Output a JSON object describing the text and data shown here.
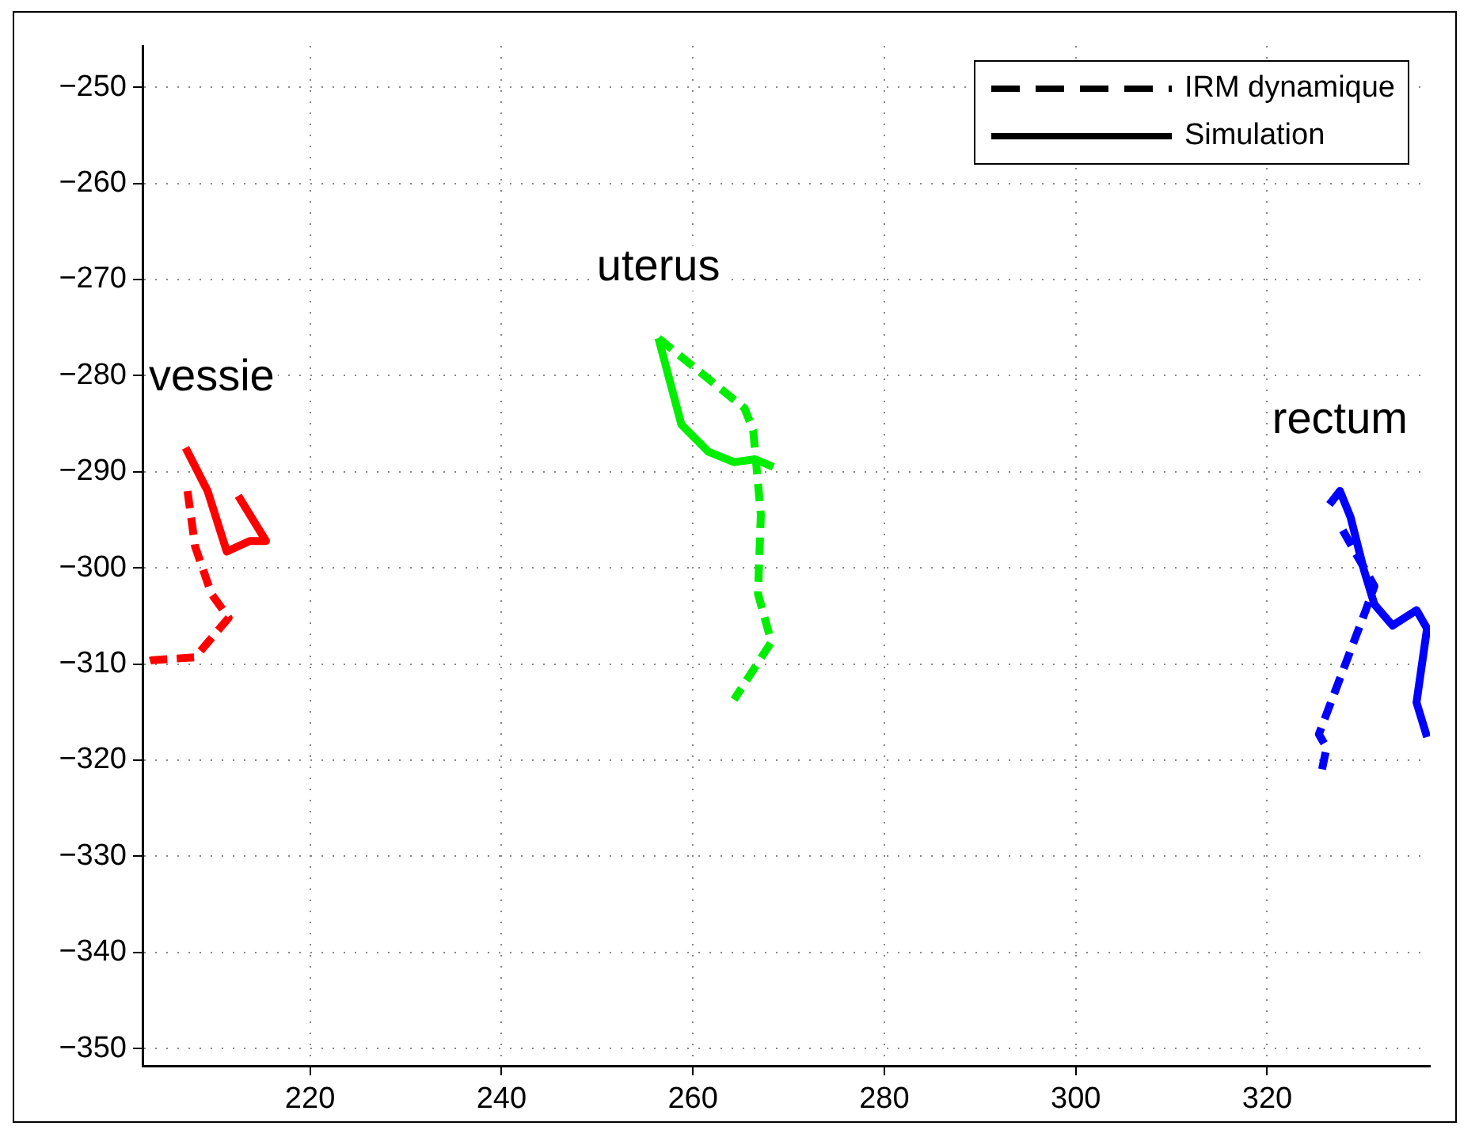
{
  "chart_data": {
    "type": "line",
    "xlim": [
      202.5,
      337
    ],
    "xticks": [
      220,
      240,
      260,
      280,
      300,
      320
    ],
    "ylim": [
      -351.8,
      -245.7
    ],
    "yticks": [
      {
        "value": -350,
        "label": "−350"
      },
      {
        "value": -340,
        "label": "−340"
      },
      {
        "value": -330,
        "label": "−330"
      },
      {
        "value": -320,
        "label": "−320"
      },
      {
        "value": -310,
        "label": "−310"
      },
      {
        "value": -300,
        "label": "−300"
      },
      {
        "value": -290,
        "label": "−290"
      },
      {
        "value": -280,
        "label": "−280"
      },
      {
        "value": -270,
        "label": "−270"
      },
      {
        "value": -260,
        "label": "−260"
      },
      {
        "value": -250,
        "label": "−250"
      }
    ],
    "grid": true,
    "legend": "top right",
    "marker": "none",
    "series": [
      {
        "color": "#ff0000",
        "line_style": "dashed",
        "x": [
          207.2,
          208.0,
          209.7,
          211.5,
          208.0,
          203.5,
          202.8
        ],
        "values": [
          -292.0,
          -297.8,
          -302.7,
          -305.2,
          -309.3,
          -309.6,
          -309.8
        ]
      },
      {
        "name": "vessie",
        "color": "#ff0000",
        "line_style": "solid",
        "x": [
          207.0,
          209.3,
          211.3,
          213.7,
          215.4,
          212.5
        ],
        "values": [
          -287.5,
          -292.0,
          -298.3,
          -297.2,
          -297.2,
          -292.5
        ]
      },
      {
        "color": "#00ee00",
        "line_style": "dashed",
        "x": [
          256.4,
          265.4,
          266.3,
          267.1,
          266.8,
          268.2,
          264.3
        ],
        "values": [
          -276.1,
          -283.4,
          -285.7,
          -294.5,
          -302.7,
          -307.7,
          -313.7
        ]
      },
      {
        "name": "uterus",
        "color": "#00ee00",
        "line_style": "solid",
        "x": [
          256.4,
          258.8,
          261.6,
          264.3,
          266.5,
          268.4
        ],
        "values": [
          -276.1,
          -285.1,
          -287.9,
          -289.0,
          -288.7,
          -289.5
        ]
      },
      {
        "color": "#0000ff",
        "line_style": "dashed",
        "x": [
          327.9,
          331.2,
          330.3,
          325.4,
          326.2,
          325.7
        ],
        "values": [
          -296.1,
          -301.9,
          -304.4,
          -317.3,
          -318.7,
          -321.1
        ]
      },
      {
        "name": "rectum",
        "color": "#0000ff",
        "line_style": "solid",
        "x": [
          326.5,
          327.6,
          328.7,
          330.1,
          331.2,
          333.1,
          335.6,
          336.7,
          335.6,
          336.7
        ],
        "values": [
          -293.4,
          -292.0,
          -294.7,
          -300.2,
          -303.8,
          -306.0,
          -304.4,
          -306.3,
          -314.0,
          -317.6
        ]
      }
    ],
    "annotations": [
      "IRM dynamique",
      "Simulation"
    ]
  }
}
